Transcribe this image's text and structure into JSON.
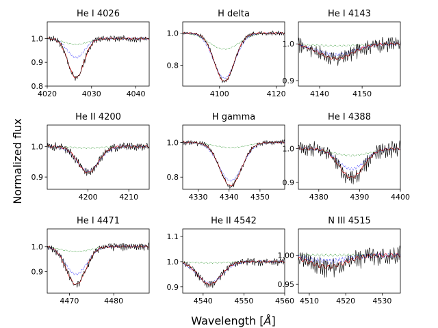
{
  "figure": {
    "xlabel": "Wavelength [$\\AA$]",
    "xlabel_text": "Wavelength [",
    "xlabel_unit": "Å",
    "xlabel_end": "]",
    "ylabel": "Normalized flux"
  },
  "colors": {
    "observed": "#000000",
    "model_red": "#ff0000",
    "model_blue": "#0000ff",
    "model_green": "#008000"
  },
  "chart_data": [
    {
      "type": "line",
      "title": "He I 4026",
      "xlim": [
        4020,
        4043
      ],
      "ylim": [
        0.8,
        1.07
      ],
      "xticks": [
        4020,
        4030,
        4040
      ],
      "yticks": [
        0.8,
        0.9,
        1.0
      ],
      "xtick_labels": [
        "4020",
        "4030",
        "4040"
      ],
      "ytick_labels": [
        "0.8",
        "0.9",
        "1.0"
      ],
      "line": {
        "center": 4026.5,
        "depth": 0.165,
        "width": 1.8,
        "green_depth": 0.025,
        "blue_depth": 0.08,
        "noise": 0.008
      }
    },
    {
      "type": "line",
      "title": "H delta",
      "xlim": [
        4087,
        4123
      ],
      "ylim": [
        0.67,
        1.07
      ],
      "xticks": [
        4100,
        4120
      ],
      "yticks": [
        0.8,
        1.0
      ],
      "xtick_labels": [
        "4100",
        "4120"
      ],
      "ytick_labels": [
        "0.8",
        "1.0"
      ],
      "line": {
        "center": 4101.7,
        "depth": 0.3,
        "width": 3.5,
        "green_depth": 0.1,
        "blue_depth": 0.28,
        "noise": 0.008
      }
    },
    {
      "type": "line",
      "title": "He I 4143",
      "xlim": [
        4135,
        4159
      ],
      "ylim": [
        0.885,
        1.06
      ],
      "xticks": [
        4140,
        4150
      ],
      "yticks": [
        0.9,
        1.0
      ],
      "xtick_labels": [
        "4140",
        "4150"
      ],
      "ytick_labels": [
        "0.9",
        "1.0"
      ],
      "line": {
        "center": 4143.8,
        "depth": 0.04,
        "width": 4.0,
        "green_depth": 0.005,
        "blue_depth": 0.03,
        "noise": 0.012
      }
    },
    {
      "type": "line",
      "title": "He II 4200",
      "xlim": [
        4190,
        4215
      ],
      "ylim": [
        0.86,
        1.07
      ],
      "xticks": [
        4200,
        4210
      ],
      "yticks": [
        0.9,
        1.0
      ],
      "xtick_labels": [
        "4200",
        "4210"
      ],
      "ytick_labels": [
        "0.9",
        "1.0"
      ],
      "line": {
        "center": 4200.0,
        "depth": 0.085,
        "width": 2.5,
        "green_depth": 0.005,
        "blue_depth": 0.08,
        "noise": 0.008
      }
    },
    {
      "type": "line",
      "title": "H gamma",
      "xlim": [
        4325,
        4358
      ],
      "ylim": [
        0.73,
        1.1
      ],
      "xticks": [
        4330,
        4340,
        4350
      ],
      "yticks": [
        0.8,
        1.0
      ],
      "xtick_labels": [
        "4330",
        "4340",
        "4350"
      ],
      "ytick_labels": [
        "0.8",
        "1.0"
      ],
      "line": {
        "center": 4340.5,
        "depth": 0.25,
        "width": 3.5,
        "green_depth": 0.03,
        "blue_depth": 0.22,
        "noise": 0.009
      }
    },
    {
      "type": "line",
      "title": "He I 4388",
      "xlim": [
        4375,
        4400
      ],
      "ylim": [
        0.88,
        1.07
      ],
      "xticks": [
        4380,
        4390,
        4400
      ],
      "yticks": [
        0.9,
        1.0
      ],
      "xtick_labels": [
        "4380",
        "4390",
        "4400"
      ],
      "ytick_labels": [
        "0.9",
        "1.0"
      ],
      "line": {
        "center": 4388.0,
        "depth": 0.085,
        "width": 3.0,
        "green_depth": 0.02,
        "blue_depth": 0.06,
        "noise": 0.014
      }
    },
    {
      "type": "line",
      "title": "He I 4471",
      "xlim": [
        4465,
        4488
      ],
      "ylim": [
        0.815,
        1.07
      ],
      "xticks": [
        4470,
        4480
      ],
      "yticks": [
        0.9,
        1.0
      ],
      "xtick_labels": [
        "4470",
        "4480"
      ],
      "ytick_labels": [
        "0.9",
        "1.0"
      ],
      "line": {
        "center": 4471.5,
        "depth": 0.15,
        "width": 2.2,
        "green_depth": 0.02,
        "blue_depth": 0.11,
        "noise": 0.009
      }
    },
    {
      "type": "line",
      "title": "He II 4542",
      "xlim": [
        4535,
        4560
      ],
      "ylim": [
        0.875,
        1.13
      ],
      "xticks": [
        4540,
        4550,
        4560
      ],
      "yticks": [
        0.9,
        1.0,
        1.1
      ],
      "xtick_labels": [
        "4540",
        "4550",
        "4560"
      ],
      "ytick_labels": [
        "0.9",
        "1.0",
        "1.1"
      ],
      "line": {
        "center": 4541.6,
        "depth": 0.09,
        "width": 2.8,
        "green_depth": 0.005,
        "blue_depth": 0.085,
        "noise": 0.009
      }
    },
    {
      "type": "line",
      "title": "N III 4515",
      "xlim": [
        4507,
        4535
      ],
      "ylim": [
        0.935,
        1.045
      ],
      "xticks": [
        4510,
        4520,
        4530
      ],
      "yticks": [
        0.95,
        1.0
      ],
      "xtick_labels": [
        "4510",
        "4520",
        "4530"
      ],
      "ytick_labels": [
        "0.95",
        "1.00"
      ],
      "line": {
        "center": 4515.0,
        "depth": 0.02,
        "width": 5.0,
        "green_depth": 0.0,
        "blue_depth": 0.01,
        "noise": 0.01
      }
    }
  ]
}
